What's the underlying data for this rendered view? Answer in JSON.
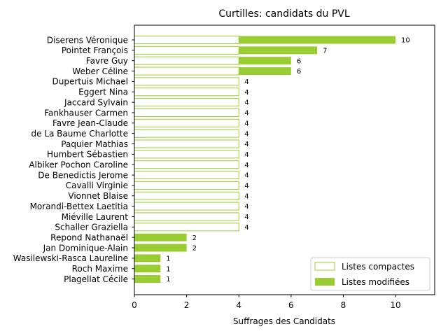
{
  "chart_data": {
    "type": "bar",
    "orientation": "horizontal",
    "stacked": true,
    "title": "Curtilles: candidats du PVL",
    "xlabel": "Suffrages des Candidats",
    "ylabel": "",
    "xlim": [
      0,
      11.5
    ],
    "x_ticks": [
      "0",
      "2",
      "4",
      "6",
      "8",
      "10"
    ],
    "grid": false,
    "legend_position": "lower right",
    "categories": [
      "Diserens Véronique",
      "Pointet François",
      "Favre Guy",
      "Weber Céline",
      "Dupertuis Michael",
      "Eggert Nina",
      "Jaccard Sylvain",
      "Fankhauser Carmen",
      "Favre Jean-Claude",
      "de La Baume Charlotte",
      "Paquier Mathias",
      "Humbert Sébastien",
      "Albiker Pochon Caroline",
      "De Benedictis Jerome",
      "Cavalli Virginie",
      "Vionnet Blaise",
      "Morandi-Bettex Laetitia",
      "Miéville Laurent",
      "Schaller Graziella",
      "Repond Nathanaël",
      "Jan Dominique-Alain",
      "Wasilewski-Rasca Laureline",
      "Roch Maxime",
      "Plagellat Cécile"
    ],
    "series": [
      {
        "name": "Listes compactes",
        "style": "outline",
        "color": "#9acd32",
        "values": [
          4,
          4,
          4,
          4,
          4,
          4,
          4,
          4,
          4,
          4,
          4,
          4,
          4,
          4,
          4,
          4,
          4,
          4,
          4,
          0,
          0,
          0,
          0,
          0
        ]
      },
      {
        "name": "Listes modifiées",
        "style": "filled",
        "color": "#9acd32",
        "values": [
          6,
          3,
          2,
          2,
          0,
          0,
          0,
          0,
          0,
          0,
          0,
          0,
          0,
          0,
          0,
          0,
          0,
          0,
          0,
          2,
          2,
          1,
          1,
          1
        ]
      }
    ],
    "totals": [
      "10",
      "7",
      "6",
      "6",
      "4",
      "4",
      "4",
      "4",
      "4",
      "4",
      "4",
      "4",
      "4",
      "4",
      "4",
      "4",
      "4",
      "4",
      "4",
      "2",
      "2",
      "1",
      "1",
      "1"
    ]
  }
}
